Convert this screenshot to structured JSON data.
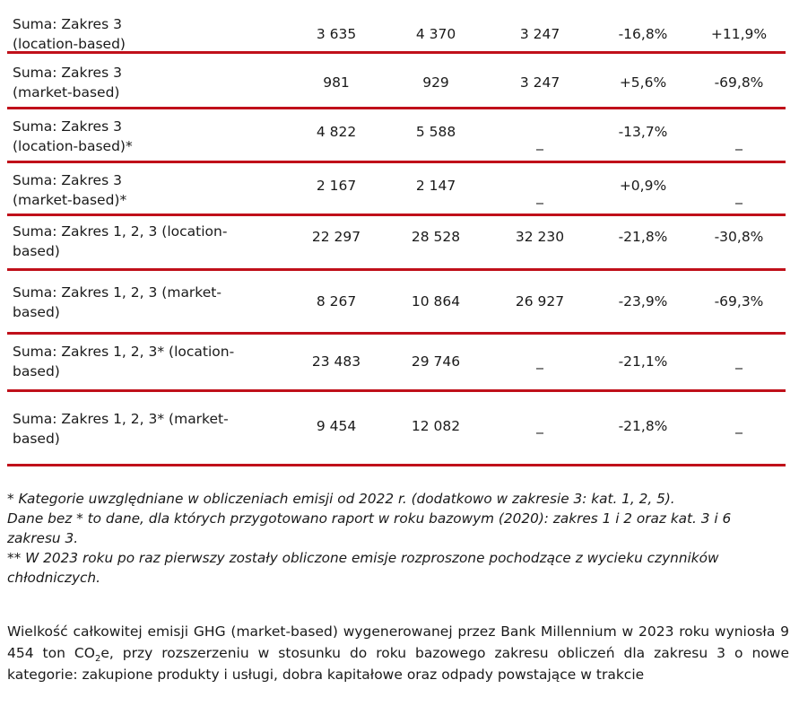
{
  "rows": [
    {
      "label": "Suma: Zakres 3\n(location-based)",
      "v1": "3 635",
      "v2": "4 370",
      "v3": "3 247",
      "v4": "-16,8%",
      "v5": "+11,9%"
    },
    {
      "label": "Suma: Zakres 3\n(market-based)",
      "v1": "981",
      "v2": "929",
      "v3": "3 247",
      "v4": "+5,6%",
      "v5": "-69,8%"
    },
    {
      "label": "Suma: Zakres 3\n(location-based)*",
      "v1": "4 822",
      "v2": "5 588",
      "v3": "_",
      "v4": "-13,7%",
      "v5": "_"
    },
    {
      "label": "Suma: Zakres 3\n(market-based)*",
      "v1": "2 167",
      "v2": "2 147",
      "v3": "_",
      "v4": "+0,9%",
      "v5": "_"
    },
    {
      "label": "Suma: Zakres 1, 2, 3 (location-\nbased)",
      "v1": "22 297",
      "v2": "28 528",
      "v3": "32 230",
      "v4": "-21,8%",
      "v5": "-30,8%"
    },
    {
      "label": "Suma: Zakres 1, 2, 3 (market-\nbased)",
      "v1": "8 267",
      "v2": "10 864",
      "v3": "26 927",
      "v4": "-23,9%",
      "v5": "-69,3%"
    },
    {
      "label": "Suma: Zakres 1, 2, 3* (location-\nbased)",
      "v1": "23 483",
      "v2": "29 746",
      "v3": "_",
      "v4": "-21,1%",
      "v5": "_"
    },
    {
      "label": "Suma: Zakres 1, 2, 3* (market-\nbased)",
      "v1": "9 454",
      "v2": "12 082",
      "v3": "_",
      "v4": "-21,8%",
      "v5": "_"
    }
  ],
  "notes": {
    "note1": "* Kategorie uwzględniane w obliczeniach emisji od 2022 r. (dodatkowo w zakresie 3: kat. 1, 2, 5).",
    "note2": "Dane bez * to dane, dla których przygotowano raport w roku bazowym (2020): zakres 1 i 2 oraz kat. 3 i 6 zakresu 3.",
    "note3": "** W 2023 roku po raz pierwszy zostały obliczone emisje rozproszone pochodzące z wycieku czynników chłodniczych."
  },
  "body": {
    "part1": "Wielkość całkowitej emisji GHG (market-based) wygenerowanej przez Bank Millennium w 2023 roku wyniosła 9 454 ton CO",
    "sub": "2",
    "part2": "e, przy rozszerzeniu w stosunku do roku bazowego zakresu obliczeń dla zakresu 3 o nowe kategorie: zakupione produkty i usługi, dobra kapitałowe oraz odpady powstające w trakcie"
  }
}
